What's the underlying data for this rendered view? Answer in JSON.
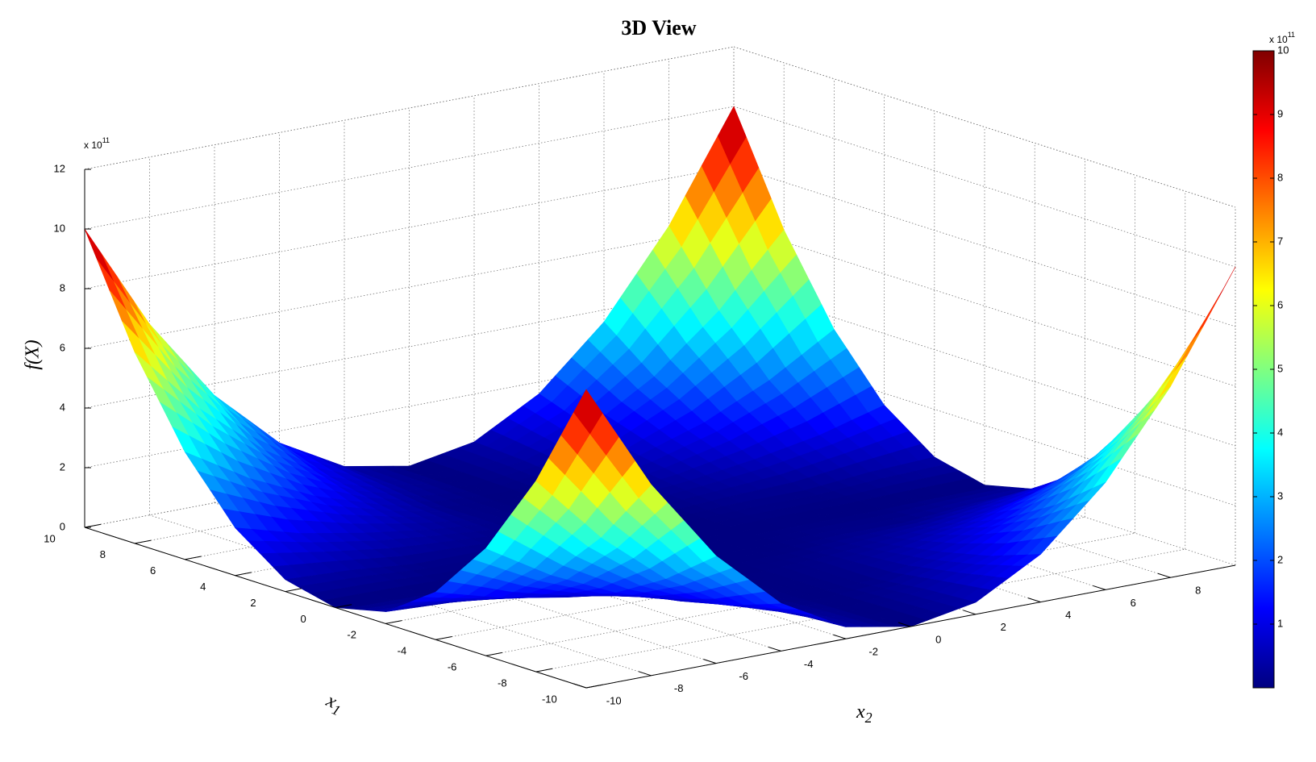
{
  "chart_data": {
    "type": "surface",
    "title": "3D View",
    "xlabel": {
      "symbol": "x",
      "subscript": "1"
    },
    "ylabel": {
      "symbol": "x",
      "subscript": "2"
    },
    "zlabel": "f(X)",
    "z_multiplier": {
      "base": "x 10",
      "exponent": "11"
    },
    "x1": [
      -10,
      -8,
      -6,
      -4,
      -2,
      0,
      2,
      4,
      6,
      8,
      10
    ],
    "x2": [
      -10,
      -8,
      -6,
      -4,
      -2,
      0,
      2,
      4,
      6,
      8,
      10
    ],
    "z": [
      [
        10,
        6.4,
        3.6,
        1.6,
        0.4,
        0,
        0.4,
        1.6,
        3.6,
        6.4,
        10
      ],
      [
        6.4,
        4.1,
        2.3,
        1,
        0.3,
        0,
        0.3,
        1,
        2.3,
        4.1,
        6.4
      ],
      [
        3.6,
        2.3,
        1.3,
        0.6,
        0.1,
        0,
        0.1,
        0.6,
        1.3,
        2.3,
        3.6
      ],
      [
        1.6,
        1,
        0.6,
        0.3,
        0.1,
        0,
        0.1,
        0.3,
        0.6,
        1,
        1.6
      ],
      [
        0.4,
        0.3,
        0.1,
        0.1,
        0,
        0,
        0,
        0.1,
        0.1,
        0.3,
        0.4
      ],
      [
        0,
        0,
        0,
        0,
        0,
        0,
        0,
        0,
        0,
        0,
        0
      ],
      [
        0.4,
        0.3,
        0.1,
        0.1,
        0,
        0,
        0,
        0.1,
        0.1,
        0.3,
        0.4
      ],
      [
        1.6,
        1,
        0.6,
        0.3,
        0.1,
        0,
        0.1,
        0.3,
        0.6,
        1,
        1.6
      ],
      [
        3.6,
        2.3,
        1.3,
        0.6,
        0.1,
        0,
        0.1,
        0.6,
        1.3,
        2.3,
        3.6
      ],
      [
        6.4,
        4.1,
        2.3,
        1,
        0.3,
        0,
        0.3,
        1,
        2.3,
        4.1,
        6.4
      ],
      [
        10,
        6.4,
        3.6,
        1.6,
        0.4,
        0,
        0.4,
        1.6,
        3.6,
        6.4,
        10
      ]
    ],
    "x1lim": [
      -10,
      10
    ],
    "x2lim": [
      -10,
      10
    ],
    "zlim": [
      0,
      12
    ],
    "x1ticks": [
      -10,
      -8,
      -6,
      -4,
      -2,
      0,
      2,
      4,
      6,
      8,
      10
    ],
    "x2ticks": [
      -10,
      -8,
      -6,
      -4,
      -2,
      0,
      2,
      4,
      6,
      8
    ],
    "zticks": [
      0,
      2,
      4,
      6,
      8,
      10,
      12
    ],
    "grid": true,
    "colormap": "jet",
    "colorbar": {
      "ylim": [
        0,
        10
      ],
      "yticks": [
        1,
        2,
        3,
        4,
        5,
        6,
        7,
        8,
        9,
        10
      ],
      "multiplier": {
        "base": "x 10",
        "exponent": "11"
      }
    }
  }
}
